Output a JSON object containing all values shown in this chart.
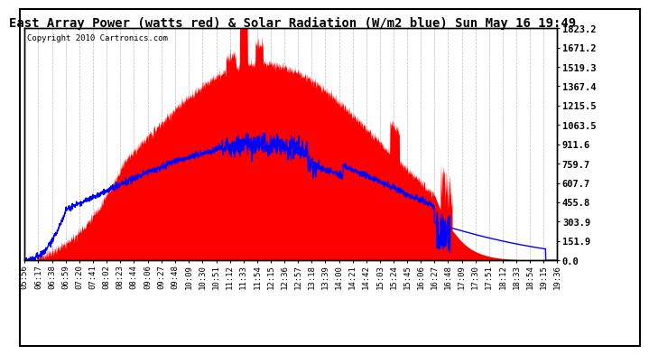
{
  "title": "East Array Power (watts red) & Solar Radiation (W/m2 blue) Sun May 16 19:49",
  "copyright": "Copyright 2010 Cartronics.com",
  "bg_color": "#ffffff",
  "plot_bg_color": "#ffffff",
  "grid_color": "#bbbbbb",
  "y_ticks": [
    0.0,
    151.9,
    303.9,
    455.8,
    607.7,
    759.7,
    911.6,
    1063.5,
    1215.5,
    1367.4,
    1519.3,
    1671.2,
    1823.2
  ],
  "y_max": 1823.2,
  "y_min": 0.0,
  "x_labels": [
    "05:56",
    "06:17",
    "06:38",
    "06:59",
    "07:20",
    "07:41",
    "08:02",
    "08:23",
    "08:44",
    "09:06",
    "09:27",
    "09:48",
    "10:09",
    "10:30",
    "10:51",
    "11:12",
    "11:33",
    "11:54",
    "12:15",
    "12:36",
    "12:57",
    "13:18",
    "13:39",
    "14:00",
    "14:21",
    "14:42",
    "15:03",
    "15:24",
    "15:45",
    "16:06",
    "16:27",
    "16:48",
    "17:09",
    "17:30",
    "17:51",
    "18:12",
    "18:33",
    "18:54",
    "19:15",
    "19:36"
  ],
  "red_color": "#ff0000",
  "blue_color": "#0000ff",
  "title_fontsize": 10,
  "axis_fontsize": 6.5,
  "copyright_fontsize": 6.5
}
